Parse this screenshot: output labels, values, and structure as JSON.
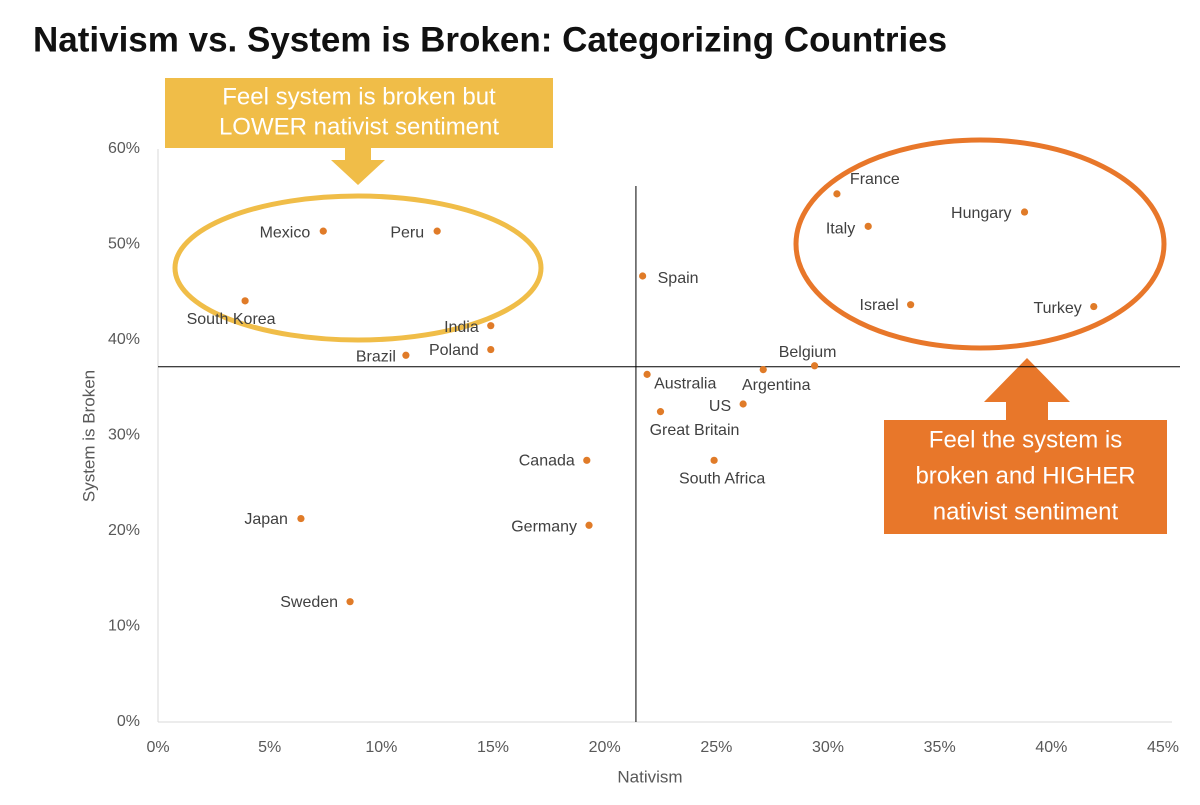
{
  "chart_data": {
    "type": "scatter",
    "title": "Nativism vs. System is Broken: Categorizing Countries",
    "x_label": "Nativism",
    "y_label": "System is Broken",
    "color": "#e07b28",
    "xlim": [
      0,
      45
    ],
    "ylim": [
      0,
      60
    ],
    "xticks": [
      {
        "value": 0,
        "label": "0%"
      },
      {
        "value": 5,
        "label": "5%"
      },
      {
        "value": 10,
        "label": "10%"
      },
      {
        "value": 15,
        "label": "15%"
      },
      {
        "value": 20,
        "label": "20%"
      },
      {
        "value": 25,
        "label": "25%"
      },
      {
        "value": 30,
        "label": "30%"
      },
      {
        "value": 35,
        "label": "35%"
      },
      {
        "value": 40,
        "label": "40%"
      },
      {
        "value": 45,
        "label": "45%"
      }
    ],
    "yticks": [
      {
        "value": 0,
        "label": "0%"
      },
      {
        "value": 10,
        "label": "10%"
      },
      {
        "value": 20,
        "label": "20%"
      },
      {
        "value": 30,
        "label": "30%"
      },
      {
        "value": 40,
        "label": "40%"
      },
      {
        "value": 50,
        "label": "50%"
      },
      {
        "value": 60,
        "label": "60%"
      }
    ],
    "grid": false,
    "reference_lines": {
      "x": 21.4,
      "y": 37.2
    },
    "point_labels": [
      "Mexico",
      "Peru",
      "South Korea",
      "India",
      "Poland",
      "Brazil",
      "Spain",
      "France",
      "Italy",
      "Hungary",
      "Israel",
      "Turkey",
      "Belgium",
      "Argentina",
      "Australia",
      "US",
      "Great Britain",
      "Canada",
      "South Africa",
      "Japan",
      "Germany",
      "Sweden"
    ],
    "x": [
      7.4,
      12.5,
      3.9,
      14.9,
      14.9,
      11.1,
      21.7,
      30.4,
      31.8,
      38.8,
      33.7,
      41.9,
      29.4,
      27.1,
      21.9,
      26.2,
      22.5,
      19.2,
      24.9,
      6.4,
      19.3,
      8.6
    ],
    "values": [
      51.4,
      51.4,
      44.1,
      41.5,
      39.0,
      38.4,
      46.7,
      55.3,
      51.9,
      53.4,
      43.7,
      43.5,
      37.3,
      36.9,
      36.4,
      33.3,
      32.5,
      27.4,
      27.4,
      21.3,
      20.6,
      12.6
    ],
    "annotations": [
      {
        "lines": [
          "Feel system is broken but",
          "LOWER nativist sentiment"
        ],
        "color": "#f0bd48"
      },
      {
        "lines": [
          "Feel the system is",
          "broken and HIGHER",
          "nativist sentiment"
        ],
        "color": "#e8772a"
      }
    ]
  }
}
